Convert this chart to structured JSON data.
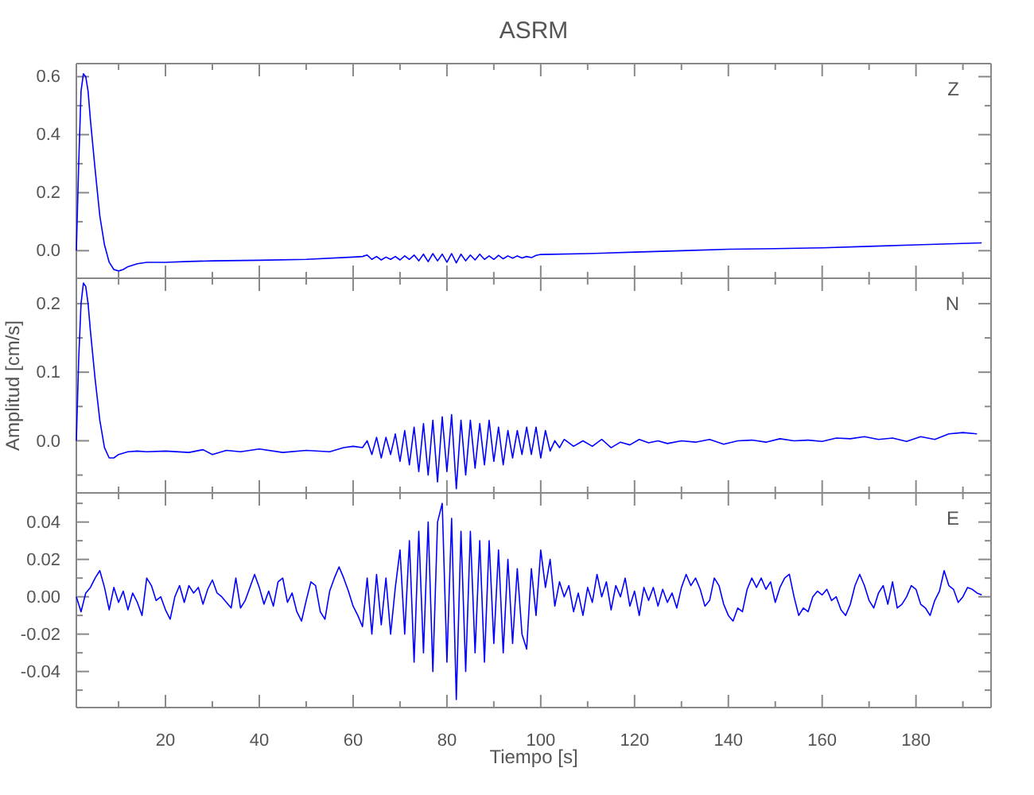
{
  "chart_data": [
    {
      "type": "line",
      "title": "ASRM",
      "annotations": [
        "Z"
      ],
      "tick_labels": "y",
      "x": [
        1,
        1.5,
        2,
        2.5,
        3,
        3.5,
        4,
        5,
        6,
        7,
        8,
        9,
        10,
        11,
        12,
        14,
        16,
        20,
        25,
        30,
        40,
        50,
        60,
        62,
        63,
        64,
        65,
        66,
        67,
        68,
        69,
        70,
        71,
        72,
        73,
        74,
        75,
        76,
        77,
        78,
        79,
        80,
        81,
        82,
        83,
        84,
        85,
        86,
        87,
        88,
        89,
        90,
        91,
        92,
        93,
        94,
        95,
        96,
        97,
        98,
        99,
        100,
        110,
        120,
        130,
        140,
        150,
        160,
        170,
        180,
        194
      ],
      "series": [
        {
          "color": "#0000ff",
          "values": [
            0.0,
            0.3,
            0.55,
            0.61,
            0.6,
            0.55,
            0.45,
            0.28,
            0.12,
            0.02,
            -0.04,
            -0.065,
            -0.07,
            -0.065,
            -0.055,
            -0.045,
            -0.04,
            -0.04,
            -0.037,
            -0.035,
            -0.033,
            -0.03,
            -0.022,
            -0.02,
            -0.015,
            -0.03,
            -0.02,
            -0.032,
            -0.022,
            -0.03,
            -0.02,
            -0.032,
            -0.018,
            -0.03,
            -0.015,
            -0.035,
            -0.012,
            -0.038,
            -0.01,
            -0.035,
            -0.012,
            -0.04,
            -0.01,
            -0.042,
            -0.012,
            -0.035,
            -0.015,
            -0.032,
            -0.012,
            -0.03,
            -0.018,
            -0.03,
            -0.016,
            -0.028,
            -0.018,
            -0.026,
            -0.018,
            -0.025,
            -0.02,
            -0.024,
            -0.016,
            -0.013,
            -0.01,
            -0.005,
            0.0,
            0.005,
            0.007,
            0.01,
            0.015,
            0.02,
            0.027
          ]
        }
      ],
      "xlim": [
        1,
        196
      ],
      "ylim": [
        -0.095,
        0.645
      ],
      "xticks": [
        {
          "value": 10,
          "label": null
        },
        20,
        {
          "value": 30,
          "label": null
        },
        40,
        {
          "value": 50,
          "label": null
        },
        60,
        {
          "value": 70,
          "label": null
        },
        80,
        {
          "value": 90,
          "label": null
        },
        100,
        {
          "value": 110,
          "label": null
        },
        120,
        {
          "value": 130,
          "label": null
        },
        140,
        {
          "value": 150,
          "label": null
        },
        160,
        {
          "value": 170,
          "label": null
        },
        180,
        {
          "value": 190,
          "label": null
        }
      ],
      "yticks": [
        {
          "value": 0,
          "label": "0.0"
        },
        {
          "value": 0.1,
          "label": null
        },
        0.2,
        {
          "value": 0.3,
          "label": null
        },
        0.4,
        {
          "value": 0.5,
          "label": null
        },
        0.6
      ]
    },
    {
      "type": "line",
      "ylabel": "Amplitud [cm/s]",
      "annotations": [
        "N"
      ],
      "tick_labels": "y",
      "x": [
        1,
        1.5,
        2,
        2.5,
        3,
        3.5,
        4,
        5,
        6,
        7,
        8,
        9,
        10,
        12,
        14,
        16,
        20,
        25,
        28,
        30,
        33,
        36,
        40,
        45,
        50,
        55,
        58,
        60,
        62,
        63,
        64,
        65,
        66,
        67,
        68,
        69,
        70,
        71,
        72,
        73,
        74,
        75,
        76,
        77,
        78,
        79,
        80,
        81,
        82,
        83,
        84,
        85,
        86,
        87,
        88,
        89,
        90,
        91,
        92,
        93,
        94,
        95,
        96,
        97,
        98,
        99,
        100,
        101,
        102,
        103,
        104,
        105,
        107,
        109,
        111,
        113,
        115,
        117,
        119,
        121,
        123,
        125,
        127,
        130,
        133,
        136,
        139,
        142,
        145,
        148,
        151,
        154,
        157,
        160,
        163,
        166,
        169,
        172,
        175,
        178,
        181,
        184,
        187,
        190,
        193
      ],
      "series": [
        {
          "color": "#0000ff",
          "values": [
            0.0,
            0.12,
            0.2,
            0.23,
            0.225,
            0.2,
            0.16,
            0.09,
            0.03,
            -0.01,
            -0.025,
            -0.025,
            -0.02,
            -0.016,
            -0.015,
            -0.016,
            -0.015,
            -0.017,
            -0.013,
            -0.02,
            -0.014,
            -0.016,
            -0.012,
            -0.017,
            -0.014,
            -0.016,
            -0.01,
            -0.008,
            -0.01,
            0.0,
            -0.02,
            0.005,
            -0.025,
            0.005,
            -0.02,
            0.01,
            -0.03,
            0.015,
            -0.035,
            0.02,
            -0.045,
            0.025,
            -0.05,
            0.03,
            -0.06,
            0.035,
            -0.045,
            0.038,
            -0.07,
            0.03,
            -0.05,
            0.03,
            -0.04,
            0.025,
            -0.035,
            0.03,
            -0.03,
            0.02,
            -0.035,
            0.015,
            -0.025,
            0.015,
            -0.02,
            0.02,
            -0.02,
            0.02,
            -0.025,
            0.015,
            -0.015,
            0.0,
            -0.01,
            0.002,
            -0.008,
            0.0,
            -0.008,
            0.002,
            -0.01,
            -0.002,
            -0.006,
            0.002,
            -0.003,
            0.0,
            -0.004,
            0.0,
            -0.002,
            0.002,
            -0.005,
            0.0,
            0.001,
            -0.002,
            0.003,
            0.0,
            0.001,
            -0.001,
            0.004,
            0.003,
            0.006,
            0.002,
            0.004,
            -0.001,
            0.006,
            0.002,
            0.01,
            0.012,
            0.01
          ]
        }
      ],
      "xlim": [
        1,
        196
      ],
      "ylim": [
        -0.076,
        0.237
      ],
      "xticks": [
        {
          "value": 10,
          "label": null
        },
        20,
        {
          "value": 30,
          "label": null
        },
        40,
        {
          "value": 50,
          "label": null
        },
        60,
        {
          "value": 70,
          "label": null
        },
        80,
        {
          "value": 90,
          "label": null
        },
        100,
        {
          "value": 110,
          "label": null
        },
        120,
        {
          "value": 130,
          "label": null
        },
        140,
        {
          "value": 150,
          "label": null
        },
        160,
        {
          "value": 170,
          "label": null
        },
        180,
        {
          "value": 190,
          "label": null
        }
      ],
      "yticks": [
        {
          "value": -0.05,
          "label": null
        },
        {
          "value": 0,
          "label": "0.0"
        },
        {
          "value": 0.05,
          "label": null
        },
        0.1,
        {
          "value": 0.15,
          "label": null
        },
        0.2
      ]
    },
    {
      "type": "line",
      "xlabel": "Tiempo [s]",
      "annotations": [
        "E"
      ],
      "x": [
        1,
        2,
        3,
        4,
        5,
        6,
        7,
        8,
        9,
        10,
        11,
        12,
        13,
        14,
        15,
        16,
        17,
        18,
        19,
        20,
        21,
        22,
        23,
        24,
        25,
        26,
        27,
        28,
        29,
        30,
        31,
        32,
        33,
        34,
        35,
        36,
        37,
        38,
        39,
        40,
        41,
        42,
        43,
        44,
        45,
        46,
        47,
        48,
        49,
        50,
        51,
        52,
        53,
        54,
        55,
        56,
        57,
        58,
        59,
        60,
        61,
        62,
        63,
        64,
        65,
        66,
        67,
        68,
        69,
        70,
        71,
        72,
        73,
        74,
        75,
        76,
        77,
        78,
        79,
        80,
        81,
        82,
        83,
        84,
        85,
        86,
        87,
        88,
        89,
        90,
        91,
        92,
        93,
        94,
        95,
        96,
        97,
        98,
        99,
        100,
        101,
        102,
        103,
        104,
        105,
        106,
        107,
        108,
        109,
        110,
        111,
        112,
        113,
        114,
        115,
        116,
        117,
        118,
        119,
        120,
        121,
        122,
        123,
        124,
        125,
        126,
        127,
        128,
        129,
        130,
        131,
        132,
        133,
        134,
        135,
        136,
        137,
        138,
        139,
        140,
        141,
        142,
        143,
        144,
        145,
        146,
        147,
        148,
        149,
        150,
        151,
        152,
        153,
        154,
        155,
        156,
        157,
        158,
        159,
        160,
        161,
        162,
        163,
        164,
        165,
        166,
        167,
        168,
        169,
        170,
        171,
        172,
        173,
        174,
        175,
        176,
        177,
        178,
        179,
        180,
        181,
        182,
        183,
        184,
        185,
        186,
        187,
        188,
        189,
        190,
        191,
        192,
        193,
        194
      ],
      "series": [
        {
          "color": "#0000ff",
          "values": [
            0.0,
            -0.008,
            0.002,
            0.005,
            0.01,
            0.014,
            0.005,
            -0.007,
            0.005,
            -0.003,
            0.003,
            -0.007,
            0.002,
            -0.003,
            -0.01,
            0.01,
            0.006,
            -0.002,
            0.0,
            -0.007,
            -0.012,
            0.0,
            0.006,
            -0.003,
            0.006,
            0.002,
            0.005,
            -0.004,
            0.004,
            0.009,
            0.002,
            0.0,
            -0.003,
            -0.006,
            0.01,
            -0.006,
            -0.002,
            0.005,
            0.012,
            0.005,
            -0.004,
            0.003,
            -0.005,
            0.008,
            0.01,
            -0.003,
            0.002,
            -0.008,
            -0.013,
            -0.002,
            0.008,
            0.006,
            -0.008,
            -0.012,
            0.003,
            0.01,
            0.016,
            0.01,
            0.003,
            -0.005,
            -0.01,
            -0.016,
            0.01,
            -0.02,
            0.012,
            -0.015,
            0.01,
            -0.02,
            0.005,
            0.025,
            -0.02,
            0.03,
            -0.035,
            0.035,
            -0.03,
            0.04,
            -0.04,
            0.04,
            0.05,
            -0.035,
            0.042,
            -0.055,
            0.035,
            -0.04,
            0.035,
            -0.03,
            0.03,
            -0.035,
            0.03,
            -0.025,
            0.025,
            -0.03,
            0.02,
            -0.025,
            0.015,
            -0.02,
            -0.028,
            0.015,
            -0.01,
            0.025,
            0.005,
            0.02,
            -0.005,
            0.008,
            0.0,
            0.006,
            -0.008,
            0.002,
            -0.01,
            0.005,
            -0.003,
            0.012,
            0.0,
            0.008,
            -0.007,
            0.006,
            0.0,
            0.01,
            -0.005,
            0.003,
            -0.01,
            0.005,
            -0.002,
            0.005,
            -0.005,
            0.004,
            -0.003,
            0.002,
            -0.006,
            0.005,
            0.012,
            0.006,
            0.01,
            0.004,
            -0.005,
            -0.002,
            0.01,
            0.006,
            -0.004,
            -0.01,
            -0.013,
            -0.006,
            -0.008,
            0.004,
            0.01,
            0.005,
            0.01,
            0.004,
            0.008,
            -0.003,
            0.005,
            0.01,
            0.012,
            0.0,
            -0.01,
            -0.006,
            -0.008,
            0.0,
            0.003,
            0.001,
            0.004,
            -0.002,
            0.0,
            -0.007,
            -0.01,
            -0.004,
            0.006,
            0.012,
            0.006,
            -0.002,
            -0.006,
            0.002,
            0.006,
            -0.004,
            0.008,
            -0.006,
            -0.004,
            0.0,
            0.006,
            0.004,
            -0.004,
            -0.006,
            -0.01,
            -0.002,
            0.003,
            0.014,
            0.006,
            0.004,
            -0.003,
            0.0,
            0.005,
            0.004,
            0.002,
            0.001
          ]
        }
      ],
      "xlim": [
        1,
        196
      ],
      "ylim": [
        -0.0593,
        0.0556
      ],
      "xticks": [
        {
          "value": 10,
          "label": null
        },
        20,
        {
          "value": 30,
          "label": null
        },
        40,
        {
          "value": 50,
          "label": null
        },
        60,
        {
          "value": 70,
          "label": null
        },
        80,
        {
          "value": 90,
          "label": null
        },
        100,
        {
          "value": 110,
          "label": null
        },
        120,
        {
          "value": 130,
          "label": null
        },
        140,
        {
          "value": 150,
          "label": null
        },
        160,
        {
          "value": 170,
          "label": null
        },
        180,
        {
          "value": 190,
          "label": null
        }
      ],
      "yticks": [
        {
          "value": -0.05,
          "label": null
        },
        -0.04,
        {
          "value": -0.03,
          "label": null
        },
        -0.02,
        {
          "value": -0.01,
          "label": null
        },
        {
          "value": 0,
          "label": "0.00"
        },
        {
          "value": 0.01,
          "label": null
        },
        0.02,
        {
          "value": 0.03,
          "label": null
        },
        0.04,
        {
          "value": 0.05,
          "label": null
        }
      ]
    }
  ]
}
